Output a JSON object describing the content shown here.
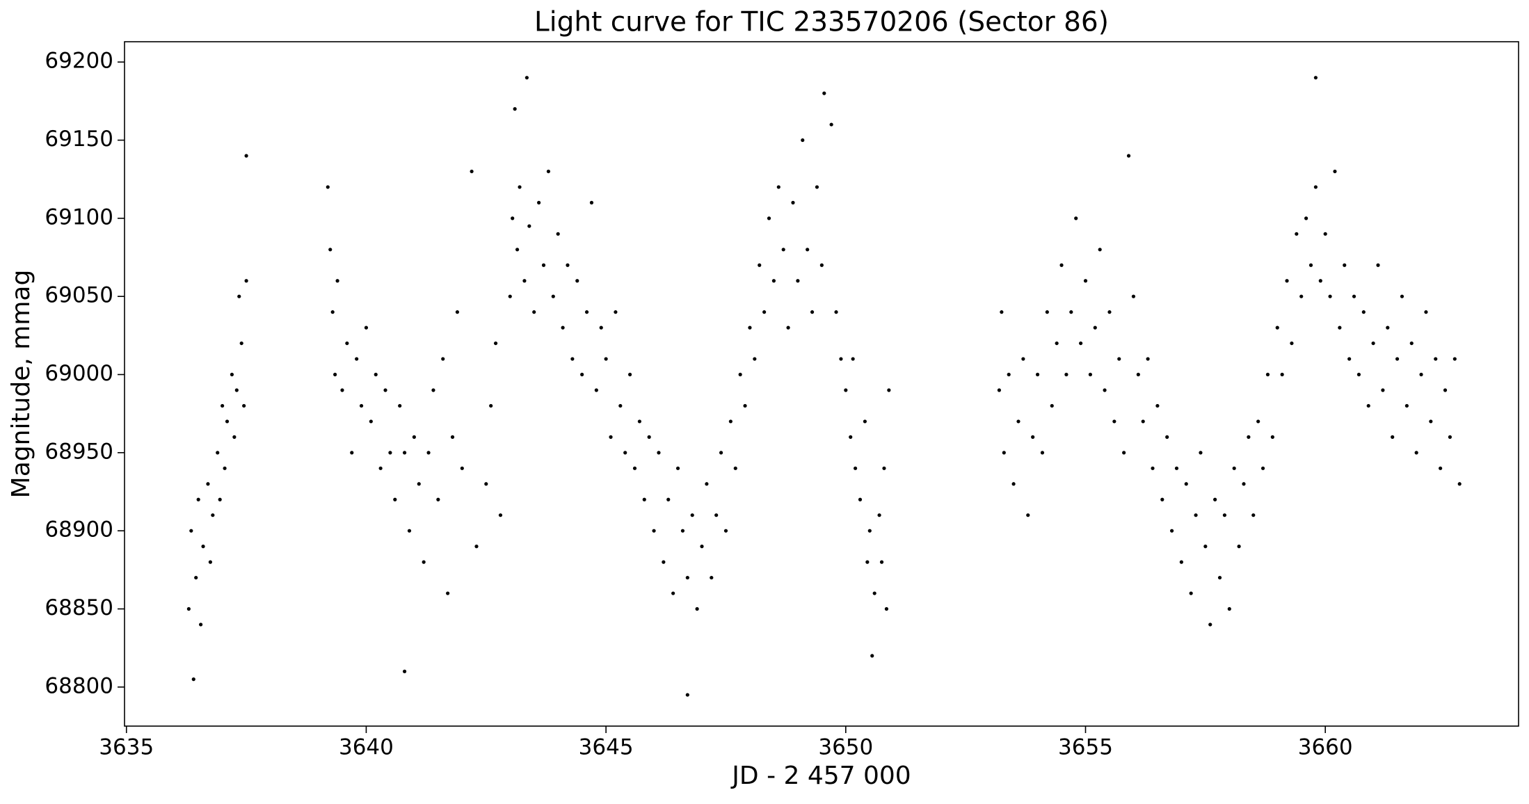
{
  "chart_data": {
    "type": "scatter",
    "title": "Light curve for TIC 233570206 (Sector 86)",
    "x_label": "JD - 2 457 000",
    "y_label": "Magnitude, mmag",
    "color": "#000000",
    "xlim": [
      3634.96,
      3664.03
    ],
    "ylim": [
      68775,
      69213
    ],
    "xticks": [
      3635,
      3640,
      3645,
      3650,
      3655,
      3660
    ],
    "yticks": [
      68800,
      68850,
      68900,
      68950,
      69000,
      69050,
      69100,
      69150,
      69200
    ],
    "x": [
      3636.3,
      3636.35,
      3636.4,
      3636.45,
      3636.5,
      3636.55,
      3636.6,
      3636.7,
      3636.75,
      3636.8,
      3636.9,
      3636.95,
      3637.0,
      3637.05,
      3637.1,
      3637.2,
      3637.25,
      3637.3,
      3637.35,
      3637.4,
      3637.45,
      3637.5,
      3637.5,
      3639.2,
      3639.25,
      3639.3,
      3639.35,
      3639.4,
      3639.5,
      3639.6,
      3639.7,
      3639.8,
      3639.9,
      3640.0,
      3640.1,
      3640.2,
      3640.3,
      3640.4,
      3640.5,
      3640.6,
      3640.7,
      3640.8,
      3640.8,
      3640.9,
      3641.0,
      3641.1,
      3641.2,
      3641.3,
      3641.4,
      3641.5,
      3641.6,
      3641.7,
      3641.8,
      3641.9,
      3642.0,
      3642.2,
      3642.3,
      3642.5,
      3642.6,
      3642.7,
      3642.8,
      3643.0,
      3643.05,
      3643.1,
      3643.15,
      3643.2,
      3643.3,
      3643.35,
      3643.4,
      3643.5,
      3643.6,
      3643.7,
      3643.8,
      3643.9,
      3644.0,
      3644.1,
      3644.2,
      3644.3,
      3644.4,
      3644.5,
      3644.6,
      3644.7,
      3644.8,
      3644.9,
      3645.0,
      3645.1,
      3645.2,
      3645.3,
      3645.4,
      3645.5,
      3645.6,
      3645.7,
      3645.8,
      3645.9,
      3646.0,
      3646.1,
      3646.2,
      3646.3,
      3646.4,
      3646.5,
      3646.6,
      3646.7,
      3646.7,
      3646.8,
      3646.9,
      3647.0,
      3647.1,
      3647.2,
      3647.3,
      3647.4,
      3647.5,
      3647.6,
      3647.7,
      3647.8,
      3647.9,
      3648.0,
      3648.1,
      3648.2,
      3648.3,
      3648.4,
      3648.5,
      3648.6,
      3648.7,
      3648.8,
      3648.9,
      3649.0,
      3649.1,
      3649.2,
      3649.3,
      3649.4,
      3649.5,
      3649.55,
      3649.7,
      3649.8,
      3649.9,
      3650.0,
      3650.1,
      3650.15,
      3650.2,
      3650.3,
      3650.4,
      3650.45,
      3650.5,
      3650.55,
      3650.6,
      3650.7,
      3650.75,
      3650.8,
      3650.85,
      3650.9,
      3653.2,
      3653.25,
      3653.3,
      3653.4,
      3653.5,
      3653.6,
      3653.7,
      3653.8,
      3653.9,
      3654.0,
      3654.1,
      3654.2,
      3654.3,
      3654.4,
      3654.5,
      3654.6,
      3654.7,
      3654.8,
      3654.9,
      3655.0,
      3655.1,
      3655.2,
      3655.3,
      3655.4,
      3655.5,
      3655.6,
      3655.7,
      3655.8,
      3655.9,
      3656.0,
      3656.1,
      3656.2,
      3656.3,
      3656.4,
      3656.5,
      3656.6,
      3656.7,
      3656.8,
      3656.9,
      3657.0,
      3657.1,
      3657.2,
      3657.3,
      3657.4,
      3657.5,
      3657.6,
      3657.7,
      3657.8,
      3657.9,
      3658.0,
      3658.1,
      3658.2,
      3658.3,
      3658.4,
      3658.5,
      3658.6,
      3658.7,
      3658.8,
      3658.9,
      3659.0,
      3659.1,
      3659.2,
      3659.3,
      3659.4,
      3659.5,
      3659.6,
      3659.7,
      3659.8,
      3659.9,
      3659.8,
      3660.0,
      3660.1,
      3660.2,
      3660.3,
      3660.4,
      3660.5,
      3660.6,
      3660.7,
      3660.8,
      3660.9,
      3661.0,
      3661.1,
      3661.2,
      3661.3,
      3661.4,
      3661.5,
      3661.6,
      3661.7,
      3661.8,
      3661.9,
      3662.0,
      3662.1,
      3662.2,
      3662.3,
      3662.4,
      3662.5,
      3662.6,
      3662.7,
      3662.8
    ],
    "values": [
      68850,
      68900,
      68805,
      68870,
      68920,
      68840,
      68890,
      68930,
      68880,
      68910,
      68950,
      68920,
      68980,
      68940,
      68970,
      69000,
      68960,
      68990,
      69050,
      69020,
      68980,
      69060,
      69140,
      69120,
      69080,
      69040,
      69000,
      69060,
      68990,
      69020,
      68950,
      69010,
      68980,
      69030,
      68970,
      69000,
      68940,
      68990,
      68950,
      68920,
      68980,
      68950,
      68810,
      68900,
      68960,
      68930,
      68880,
      68950,
      68990,
      68920,
      69010,
      68860,
      68960,
      69040,
      68940,
      69130,
      68890,
      68930,
      68980,
      69020,
      68910,
      69050,
      69100,
      69170,
      69080,
      69120,
      69060,
      69190,
      69095,
      69040,
      69110,
      69070,
      69130,
      69050,
      69090,
      69030,
      69070,
      69010,
      69060,
      69000,
      69040,
      69110,
      68990,
      69030,
      69010,
      68960,
      69040,
      68980,
      68950,
      69000,
      68940,
      68970,
      68920,
      68960,
      68900,
      68950,
      68880,
      68920,
      68860,
      68940,
      68900,
      68870,
      68795,
      68910,
      68850,
      68890,
      68930,
      68870,
      68910,
      68950,
      68900,
      68970,
      68940,
      69000,
      68980,
      69030,
      69010,
      69070,
      69040,
      69100,
      69060,
      69120,
      69080,
      69030,
      69110,
      69060,
      69150,
      69080,
      69040,
      69120,
      69070,
      69180,
      69160,
      69040,
      69010,
      68990,
      68960,
      69010,
      68940,
      68920,
      68970,
      68880,
      68900,
      68820,
      68860,
      68910,
      68880,
      68940,
      68850,
      68990,
      68990,
      69040,
      68950,
      69000,
      68930,
      68970,
      69010,
      68910,
      68960,
      69000,
      68950,
      69040,
      68980,
      69020,
      69070,
      69000,
      69040,
      69100,
      69020,
      69060,
      69000,
      69030,
      69080,
      68990,
      69040,
      68970,
      69010,
      68950,
      69140,
      69050,
      69000,
      68970,
      69010,
      68940,
      68980,
      68920,
      68960,
      68900,
      68940,
      68880,
      68930,
      68860,
      68910,
      68950,
      68890,
      68840,
      68920,
      68870,
      68910,
      68850,
      68940,
      68890,
      68930,
      68960,
      68910,
      68970,
      68940,
      69000,
      68960,
      69030,
      69000,
      69060,
      69020,
      69090,
      69050,
      69100,
      69070,
      69120,
      69060,
      69190,
      69090,
      69050,
      69130,
      69030,
      69070,
      69010,
      69050,
      69000,
      69040,
      68980,
      69020,
      69070,
      68990,
      69030,
      68960,
      69010,
      69050,
      68980,
      69020,
      68950,
      69000,
      69040,
      68970,
      69010,
      68940,
      68990,
      68960,
      69010,
      68930
    ]
  }
}
